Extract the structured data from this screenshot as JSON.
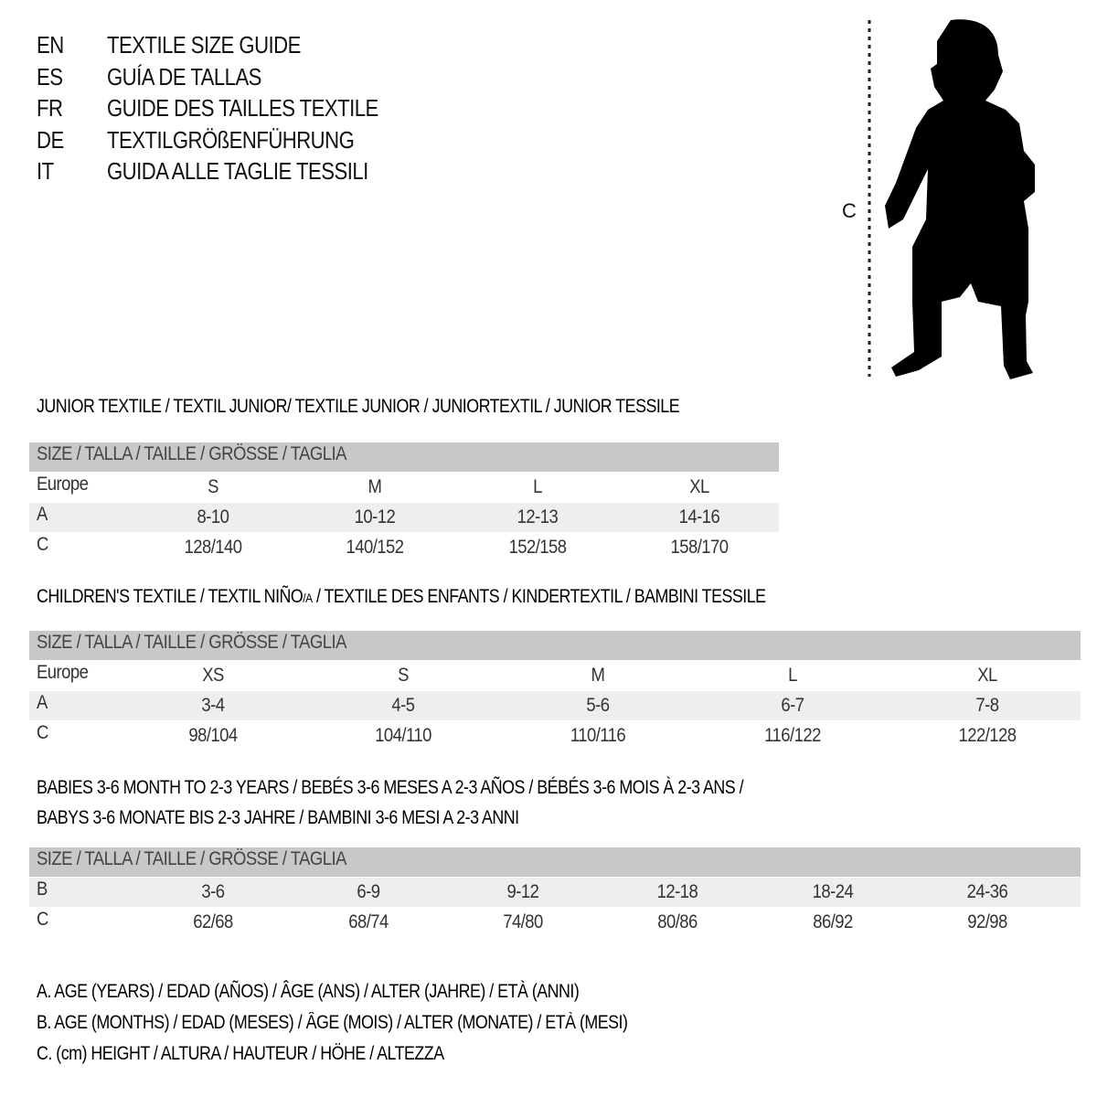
{
  "languages": [
    {
      "code": "EN",
      "title": "TEXTILE SIZE GUIDE"
    },
    {
      "code": "ES",
      "title": "GUÍA DE TALLAS"
    },
    {
      "code": "FR",
      "title": "GUIDE DES TAILLES TEXTILE"
    },
    {
      "code": "DE",
      "title": "TEXTILGRÖßENFÜHRUNG"
    },
    {
      "code": "IT",
      "title": "GUIDA ALLE TAGLIE TESSILI"
    }
  ],
  "figure": {
    "measure_label": "C",
    "icon": "child-silhouette-icon"
  },
  "size_header": "SIZE / TALLA / TAILLE / GRÖSSE / TAGLIA",
  "junior": {
    "title": "JUNIOR TEXTILE / TEXTIL JUNIOR/ TEXTILE JUNIOR / JUNIORTEXTIL / JUNIOR TESSILE",
    "rows": [
      {
        "label": "Europe",
        "values": [
          "S",
          "M",
          "L",
          "XL"
        ]
      },
      {
        "label": "A",
        "values": [
          "8-10",
          "10-12",
          "12-13",
          "14-16"
        ]
      },
      {
        "label": "C",
        "values": [
          "128/140",
          "140/152",
          "152/158",
          "158/170"
        ]
      }
    ]
  },
  "children": {
    "title_before": "CHILDREN'S TEXTILE / TEXTIL NIÑO",
    "title_sub": "/A",
    "title_after": " / TEXTILE DES ENFANTS / KINDERTEXTIL / BAMBINI TESSILE",
    "rows": [
      {
        "label": "Europe",
        "values": [
          "XS",
          "S",
          "M",
          "L",
          "XL"
        ]
      },
      {
        "label": "A",
        "values": [
          "3-4",
          "4-5",
          "5-6",
          "6-7",
          "7-8"
        ]
      },
      {
        "label": "C",
        "values": [
          "98/104",
          "104/110",
          "110/116",
          "116/122",
          "122/128"
        ]
      }
    ]
  },
  "babies": {
    "title_line1": "BABIES 3-6 MONTH TO 2-3 YEARS / BEBÉS 3-6 MESES A 2-3 AÑOS / BÉBÉS 3-6 MOIS À 2-3 ANS /",
    "title_line2": "BABYS 3-6 MONATE BIS 2-3 JAHRE / BAMBINI 3-6 MESI A 2-3 ANNI",
    "rows": [
      {
        "label": "B",
        "values": [
          "3-6",
          "6-9",
          "9-12",
          "12-18",
          "18-24",
          "24-36"
        ]
      },
      {
        "label": "C",
        "values": [
          "62/68",
          "68/74",
          "74/80",
          "80/86",
          "86/92",
          "92/98"
        ]
      }
    ]
  },
  "legend": [
    "A. AGE (YEARS) / EDAD (AÑOS) / ÂGE (ANS) / ALTER (JAHRE) / ETÀ (ANNI)",
    "B. AGE (MONTHS) / EDAD (MESES) / ÂGE (MOIS) / ALTER (MONATE) / ETÀ (MESI)",
    "C. (cm) HEIGHT / ALTURA / HAUTEUR / HÖHE / ALTEZZA"
  ],
  "colors": {
    "header_bg": "#c8c8c8",
    "alt_row_bg": "#eeeeee"
  }
}
